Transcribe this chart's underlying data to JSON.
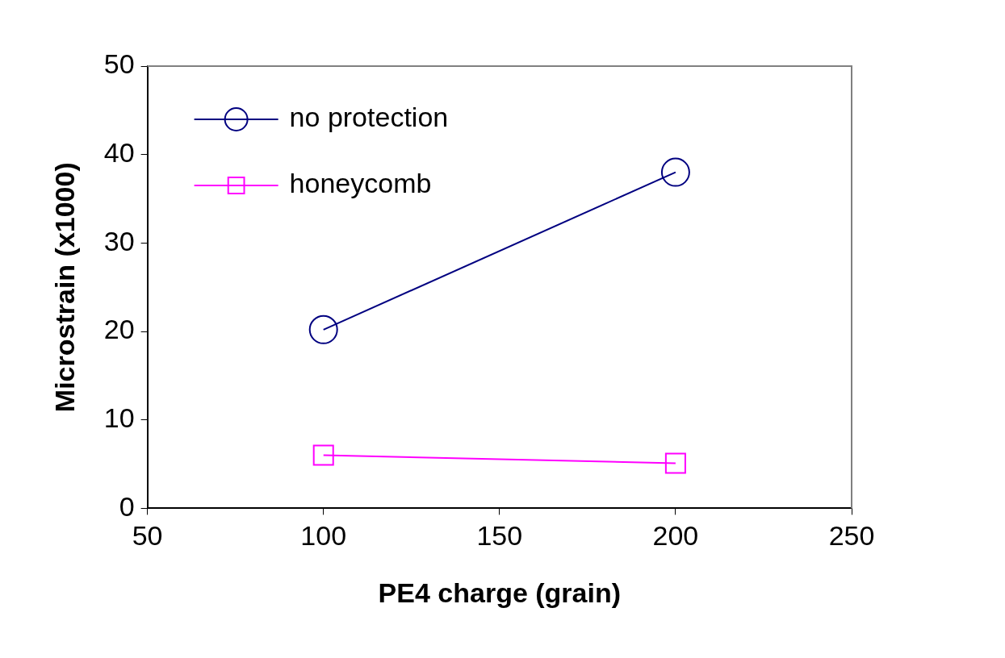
{
  "chart_data": {
    "type": "line",
    "xlabel": "PE4 charge (grain)",
    "ylabel": "Microstrain (x1000)",
    "x": [
      100,
      200
    ],
    "series": [
      {
        "name": "no protection",
        "color": "#000080",
        "values": [
          20.2,
          38.0
        ],
        "marker": "circle"
      },
      {
        "name": "honeycomb",
        "color": "#ff00ff",
        "values": [
          6.0,
          5.1
        ],
        "marker": "square"
      }
    ],
    "xlim": [
      50,
      250
    ],
    "xticks": [
      50,
      100,
      150,
      200,
      250
    ],
    "ylim": [
      0,
      50
    ],
    "yticks": [
      0,
      10,
      20,
      30,
      40,
      50
    ],
    "grid": false,
    "legend": "top left",
    "line_style": "solid"
  }
}
